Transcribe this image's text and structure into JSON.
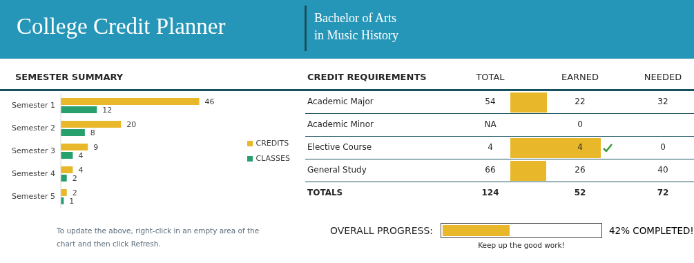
{
  "chart_data": [
    {
      "type": "other",
      "title": "College Credit Planner",
      "subtitle": "Bachelor of Arts\nin Music History"
    },
    {
      "type": "bar",
      "orientation": "horizontal",
      "title": "SEMESTER SUMMARY",
      "categories": [
        "Semester 1",
        "Semester 2",
        "Semester 3",
        "Semester 4",
        "Semester 5"
      ],
      "series": [
        {
          "name": "CREDITS",
          "color": "#e9b72a",
          "values": [
            46,
            20,
            9,
            4,
            2
          ]
        },
        {
          "name": "CLASSES",
          "color": "#27a06e",
          "values": [
            12,
            8,
            4,
            2,
            1
          ]
        }
      ],
      "data_labels": true,
      "legend": "right",
      "tick_labels": "y",
      "annotations": [
        "To update the above, right-click in an empty area of the chart and then click Refresh."
      ]
    },
    {
      "type": "other",
      "title": "CREDIT REQUIREMENTS",
      "categories": [
        "Academic Major",
        "Academic Minor",
        "Elective Course",
        "General Study",
        "TOTALS"
      ],
      "series": [
        {
          "name": "TOTAL",
          "values": [
            54,
            null,
            4,
            66,
            124
          ],
          "value_labels": [
            "54",
            "NA",
            "4",
            "66",
            "124"
          ]
        },
        {
          "name": "EARNED",
          "color": "#e9b72a",
          "values": [
            22,
            0,
            4,
            26,
            52
          ]
        },
        {
          "name": "NEEDED",
          "values": [
            32,
            null,
            0,
            40,
            72
          ]
        }
      ],
      "data_labels": true
    },
    {
      "type": "other",
      "title": "OVERALL PROGRESS:",
      "values": [
        42
      ],
      "color": "#e9b72a",
      "value_labels": [
        "42% COMPLETED!"
      ],
      "annotations": [
        "Keep up the good work!"
      ]
    }
  ]
}
